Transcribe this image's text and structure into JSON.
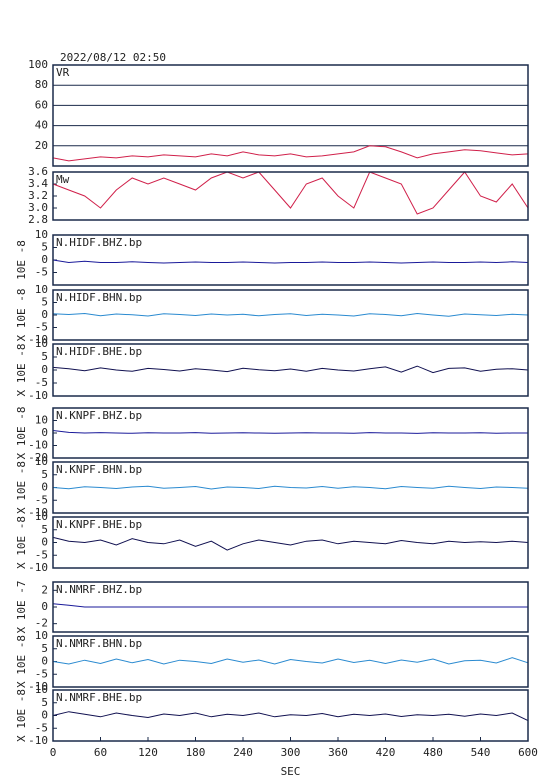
{
  "chart_data": [
    {
      "type": "line",
      "title": "2022/08/12 02:50",
      "label": "VR",
      "color": "#d0204a",
      "grid": true,
      "xlim": [
        0,
        600
      ],
      "x": [
        0,
        20,
        40,
        60,
        80,
        100,
        120,
        140,
        160,
        180,
        200,
        220,
        240,
        260,
        280,
        300,
        320,
        340,
        360,
        380,
        400,
        420,
        440,
        460,
        480,
        500,
        520,
        540,
        560,
        580,
        600
      ],
      "values": [
        8,
        5,
        7,
        9,
        8,
        10,
        9,
        11,
        10,
        9,
        12,
        10,
        14,
        11,
        10,
        12,
        9,
        10,
        12,
        14,
        20,
        19,
        14,
        8,
        12,
        14,
        16,
        15,
        13,
        11,
        12
      ],
      "ylim": [
        0,
        100
      ],
      "yticks": [
        20,
        40,
        60,
        80,
        100
      ]
    },
    {
      "type": "line",
      "label": "Mw",
      "color": "#d0204a",
      "xlim": [
        0,
        600
      ],
      "x": [
        0,
        20,
        40,
        60,
        80,
        100,
        120,
        140,
        160,
        180,
        200,
        220,
        240,
        260,
        280,
        300,
        320,
        340,
        360,
        380,
        400,
        420,
        440,
        460,
        480,
        500,
        520,
        540,
        560,
        580,
        600
      ],
      "values": [
        3.4,
        3.3,
        3.2,
        3.0,
        3.3,
        3.5,
        3.4,
        3.5,
        3.4,
        3.3,
        3.5,
        3.6,
        3.5,
        3.6,
        3.3,
        3.0,
        3.4,
        3.5,
        3.2,
        3.0,
        3.6,
        3.5,
        3.4,
        2.9,
        3.0,
        3.3,
        3.6,
        3.2,
        3.1,
        3.4,
        3.0
      ],
      "ylim": [
        2.8,
        3.6
      ],
      "yticks": [
        {
          "value": 2.8,
          "label": "2.8"
        },
        {
          "value": 3.0,
          "label": "3.0"
        },
        {
          "value": 3.2,
          "label": "3.2"
        },
        {
          "value": 3.4,
          "label": "3.4"
        },
        {
          "value": 3.6,
          "label": "3.6"
        }
      ]
    },
    {
      "type": "line",
      "label": "N.HIDF.BHZ.bp",
      "ylabel": "10E -8",
      "color": "#1a1a9a",
      "xlim": [
        0,
        600
      ],
      "x": [
        0,
        20,
        40,
        60,
        80,
        100,
        120,
        140,
        160,
        180,
        200,
        220,
        240,
        260,
        280,
        300,
        320,
        340,
        360,
        380,
        400,
        420,
        440,
        460,
        480,
        500,
        520,
        540,
        560,
        580,
        600
      ],
      "values": [
        0,
        -1,
        -0.5,
        -1,
        -1,
        -0.7,
        -1,
        -1.2,
        -1,
        -0.8,
        -1,
        -1,
        -0.8,
        -1,
        -1.2,
        -1,
        -1,
        -0.8,
        -1,
        -1,
        -0.8,
        -1,
        -1.2,
        -1,
        -0.8,
        -1,
        -1,
        -0.8,
        -1,
        -0.7,
        -1
      ],
      "ylim": [
        -10,
        10
      ],
      "yticks": [
        -5,
        0,
        5,
        10
      ]
    },
    {
      "type": "line",
      "label": "N.HIDF.BHN.bp",
      "ylabel": "X 10E -8",
      "color": "#2a8ad0",
      "xlim": [
        0,
        600
      ],
      "x": [
        0,
        20,
        40,
        60,
        80,
        100,
        120,
        140,
        160,
        180,
        200,
        220,
        240,
        260,
        280,
        300,
        320,
        340,
        360,
        380,
        400,
        420,
        440,
        460,
        480,
        500,
        520,
        540,
        560,
        580,
        600
      ],
      "values": [
        0.5,
        0.2,
        0.6,
        -0.3,
        0.4,
        0.1,
        -0.4,
        0.5,
        0.2,
        -0.2,
        0.4,
        0,
        0.3,
        -0.3,
        0.2,
        0.5,
        -0.2,
        0.3,
        0,
        -0.4,
        0.5,
        0.2,
        -0.3,
        0.6,
        0,
        -0.5,
        0.4,
        0.1,
        -0.2,
        0.3,
        0
      ],
      "ylim": [
        -10,
        10
      ],
      "yticks": [
        -10,
        -5,
        0,
        5,
        10
      ]
    },
    {
      "type": "line",
      "label": "N.HIDF.BHE.bp",
      "ylabel": "X 10E -8",
      "color": "#101050",
      "xlim": [
        0,
        600
      ],
      "x": [
        0,
        20,
        40,
        60,
        80,
        100,
        120,
        140,
        160,
        180,
        200,
        220,
        240,
        260,
        280,
        300,
        320,
        340,
        360,
        380,
        400,
        420,
        440,
        460,
        480,
        500,
        520,
        540,
        560,
        580,
        600
      ],
      "values": [
        1,
        0.5,
        -0.3,
        0.8,
        0,
        -0.5,
        0.6,
        0.2,
        -0.4,
        0.5,
        0,
        -0.6,
        0.7,
        0.1,
        -0.3,
        0.4,
        -0.5,
        0.6,
        0,
        -0.4,
        0.5,
        1.2,
        -0.8,
        1.5,
        -1,
        0.6,
        0.8,
        -0.5,
        0.3,
        0.5,
        0
      ],
      "ylim": [
        -10,
        10
      ],
      "yticks": [
        -10,
        -5,
        0,
        5,
        10
      ]
    },
    {
      "type": "line",
      "label": "N.KNPF.BHZ.bp",
      "ylabel": "X 10E -8",
      "color": "#1a1a9a",
      "xlim": [
        0,
        600
      ],
      "x": [
        0,
        20,
        40,
        60,
        80,
        100,
        120,
        140,
        160,
        180,
        200,
        220,
        240,
        260,
        280,
        300,
        320,
        340,
        360,
        380,
        400,
        420,
        440,
        460,
        480,
        500,
        520,
        540,
        560,
        580,
        600
      ],
      "values": [
        2,
        0.5,
        0,
        0.3,
        0,
        -0.2,
        0.2,
        0,
        0,
        0.3,
        -0.2,
        0,
        0.2,
        0,
        -0.2,
        0,
        0.2,
        0,
        0,
        -0.2,
        0.3,
        0,
        0,
        -0.3,
        0.2,
        0,
        0,
        0.2,
        -0.2,
        0,
        0
      ],
      "ylim": [
        -20,
        20
      ],
      "yticks": [
        -20,
        -10,
        0,
        10
      ]
    },
    {
      "type": "line",
      "label": "N.KNPF.BHN.bp",
      "ylabel": "X 10E -8",
      "color": "#2a8ad0",
      "xlim": [
        0,
        600
      ],
      "x": [
        0,
        20,
        40,
        60,
        80,
        100,
        120,
        140,
        160,
        180,
        200,
        220,
        240,
        260,
        280,
        300,
        320,
        340,
        360,
        380,
        400,
        420,
        440,
        460,
        480,
        500,
        520,
        540,
        560,
        580,
        600
      ],
      "values": [
        0,
        -0.5,
        0.3,
        0,
        -0.4,
        0.2,
        0.5,
        -0.3,
        0,
        0.4,
        -0.6,
        0.2,
        0,
        -0.4,
        0.5,
        0,
        -0.2,
        0.4,
        -0.3,
        0.3,
        0,
        -0.5,
        0.4,
        0,
        -0.3,
        0.5,
        0,
        -0.4,
        0.2,
        0,
        -0.3
      ],
      "ylim": [
        -10,
        10
      ],
      "yticks": [
        -10,
        -5,
        0,
        5,
        10
      ]
    },
    {
      "type": "line",
      "label": "N.KNPF.BHE.bp",
      "ylabel": "X 10E -8",
      "color": "#101050",
      "xlim": [
        0,
        600
      ],
      "x": [
        0,
        20,
        40,
        60,
        80,
        100,
        120,
        140,
        160,
        180,
        200,
        220,
        240,
        260,
        280,
        300,
        320,
        340,
        360,
        380,
        400,
        420,
        440,
        460,
        480,
        500,
        520,
        540,
        560,
        580,
        600
      ],
      "values": [
        2,
        0.5,
        0,
        1,
        -1,
        1.5,
        0,
        -0.5,
        1,
        -1.5,
        0.5,
        -3,
        -0.5,
        1,
        0,
        -1,
        0.5,
        1,
        -0.5,
        0.5,
        0,
        -0.5,
        0.8,
        0,
        -0.5,
        0.5,
        0,
        0.3,
        0,
        0.5,
        0
      ],
      "ylim": [
        -10,
        10
      ],
      "yticks": [
        -10,
        -5,
        0,
        5,
        10
      ]
    },
    {
      "type": "line",
      "label": "N.NMRF.BHZ.bp",
      "ylabel": "X 10E -7",
      "color": "#1a1a9a",
      "xlim": [
        0,
        600
      ],
      "x": [
        0,
        20,
        40,
        60,
        80,
        100,
        120,
        140,
        160,
        180,
        200,
        220,
        240,
        260,
        280,
        300,
        320,
        340,
        360,
        380,
        400,
        420,
        440,
        460,
        480,
        500,
        520,
        540,
        560,
        580,
        600
      ],
      "values": [
        0.4,
        0.2,
        0,
        0,
        0,
        0,
        0,
        0,
        0,
        0,
        0,
        0,
        0,
        0,
        0,
        0,
        0,
        0,
        0,
        0,
        0,
        0,
        0,
        0,
        0,
        0,
        0,
        0,
        0,
        0,
        0
      ],
      "ylim": [
        -3,
        3
      ],
      "yticks": [
        -2,
        0,
        2
      ]
    },
    {
      "type": "line",
      "label": "N.NMRF.BHN.bp",
      "ylabel": "X 10E -8",
      "color": "#2a8ad0",
      "xlim": [
        0,
        600
      ],
      "x": [
        0,
        20,
        40,
        60,
        80,
        100,
        120,
        140,
        160,
        180,
        200,
        220,
        240,
        260,
        280,
        300,
        320,
        340,
        360,
        380,
        400,
        420,
        440,
        460,
        480,
        500,
        520,
        540,
        560,
        580,
        600
      ],
      "values": [
        0,
        -1,
        0.5,
        -0.8,
        1,
        -0.5,
        0.8,
        -1,
        0.5,
        0,
        -0.8,
        1,
        -0.3,
        0.6,
        -1,
        0.8,
        0,
        -0.6,
        1,
        -0.4,
        0.5,
        -0.8,
        0.6,
        -0.3,
        1,
        -1,
        0.3,
        0.5,
        -0.6,
        1.5,
        -0.5
      ],
      "ylim": [
        -10,
        10
      ],
      "yticks": [
        -10,
        -5,
        0,
        5,
        10
      ]
    },
    {
      "type": "line",
      "label": "N.NMRF.BHE.bp",
      "ylabel": "X 10E -8",
      "color": "#101050",
      "xlim": [
        0,
        600
      ],
      "x": [
        0,
        20,
        40,
        60,
        80,
        100,
        120,
        140,
        160,
        180,
        200,
        220,
        240,
        260,
        280,
        300,
        320,
        340,
        360,
        380,
        400,
        420,
        440,
        460,
        480,
        500,
        520,
        540,
        560,
        580,
        600
      ],
      "values": [
        0,
        1.5,
        0.5,
        -0.5,
        1,
        0,
        -0.8,
        0.6,
        0,
        1,
        -0.5,
        0.5,
        0,
        1,
        -0.5,
        0.3,
        0,
        0.8,
        -0.5,
        0.5,
        0,
        0.6,
        -0.4,
        0.3,
        0,
        0.5,
        -0.3,
        0.6,
        0,
        1,
        -2
      ],
      "ylim": [
        -10,
        10
      ],
      "yticks": [
        -10,
        -5,
        0,
        5,
        10
      ],
      "xticks": [
        0,
        60,
        120,
        180,
        240,
        300,
        360,
        420,
        480,
        540,
        600
      ],
      "xlabel": "SEC"
    }
  ]
}
